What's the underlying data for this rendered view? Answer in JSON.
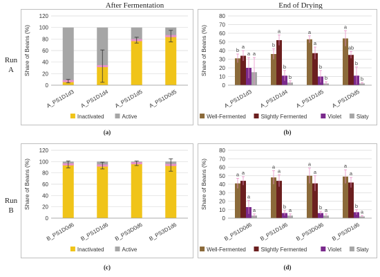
{
  "headers": {
    "left": "After Fermentation",
    "right": "End of Drying"
  },
  "runs": [
    {
      "label": "Run",
      "letter": "A"
    },
    {
      "label": "Run",
      "letter": "B"
    }
  ],
  "panel_letters": [
    "(a)",
    "(b)",
    "(c)",
    "(d)"
  ],
  "colors": {
    "inactivated": "#f0c419",
    "active": "#a6a6a6",
    "pinkband": "#e891c8",
    "well_fermented": "#8b6a3a",
    "slightly_fermented": "#6b1f1f",
    "violet": "#7a2a8c",
    "slaty": "#a6a6a6"
  },
  "chart_data": [
    {
      "id": "a",
      "type": "bar",
      "stacked": true,
      "ylabel": "Share of Beans (%)",
      "ylim": [
        0,
        120
      ],
      "yticks": [
        0,
        20,
        40,
        60,
        80,
        100,
        120
      ],
      "categories": [
        "A_PS1D1d3",
        "A_PS1D1d4",
        "A_PS1D1d5",
        "A_PS1D0d5"
      ],
      "series": [
        {
          "name": "Inactivated",
          "values": [
            7,
            33,
            78,
            85
          ],
          "errors": [
            3,
            28,
            5,
            10
          ]
        },
        {
          "name": "Active",
          "values": [
            93,
            67,
            22,
            15
          ],
          "errors": [
            3,
            28,
            5,
            13
          ]
        }
      ],
      "legend": "bottom"
    },
    {
      "id": "b",
      "type": "bar",
      "grouped": true,
      "ylabel": "Share of Beans (%)",
      "ylim": [
        0,
        80
      ],
      "yticks": [
        0,
        10,
        20,
        30,
        40,
        50,
        60,
        70,
        80
      ],
      "categories": [
        "A_PS1D1d3",
        "A_PS1D1d4",
        "A_PS1D1d5",
        "A_PS1D0d5"
      ],
      "series": [
        {
          "name": "Well-Fermented",
          "values": [
            31,
            36,
            53,
            54
          ],
          "errors": [
            5,
            6,
            4,
            9
          ]
        },
        {
          "name": "Slightly Fermented",
          "values": [
            34,
            52,
            37,
            35
          ],
          "errors": [
            6,
            6,
            7,
            4
          ]
        },
        {
          "name": "Violet",
          "values": [
            20,
            11,
            10,
            11
          ],
          "errors": [
            12,
            6,
            7,
            10
          ]
        },
        {
          "name": "Slaty",
          "values": [
            15,
            3,
            2,
            2
          ],
          "errors": [
            17,
            2,
            2,
            1
          ]
        }
      ],
      "letters": [
        [
          "b",
          "a",
          "a",
          "a"
        ],
        [
          "b",
          "a",
          "b",
          "b"
        ],
        [
          "a",
          "a",
          "b",
          "b"
        ],
        [
          "a",
          "ab",
          "b",
          "b"
        ]
      ],
      "legend": "bottom"
    },
    {
      "id": "c",
      "type": "bar",
      "stacked": true,
      "ylabel": "Share of Beans (%)",
      "ylim": [
        0,
        120
      ],
      "yticks": [
        0,
        20,
        40,
        60,
        80,
        100,
        120
      ],
      "categories": [
        "B_PS1D0d6",
        "B_PS1D1d6",
        "B_PS3D0d6",
        "B_PS3D1d6"
      ],
      "series": [
        {
          "name": "Inactivated",
          "values": [
            95,
            93,
            97,
            94
          ],
          "errors": [
            6,
            6,
            4,
            11
          ]
        },
        {
          "name": "Active",
          "values": [
            5,
            7,
            3,
            6
          ],
          "errors": [
            5,
            6,
            3,
            7
          ]
        }
      ],
      "legend": "bottom"
    },
    {
      "id": "d",
      "type": "bar",
      "grouped": true,
      "ylabel": "Share of Beans (%)",
      "ylim": [
        0,
        80
      ],
      "yticks": [
        0,
        10,
        20,
        30,
        40,
        50,
        60,
        70,
        80
      ],
      "categories": [
        "B_PS1D0d6",
        "B_PS1D1d6",
        "B_PS3D0d6",
        "B_PS3D1d6"
      ],
      "series": [
        {
          "name": "Well-Fermented",
          "values": [
            41,
            48,
            50,
            49
          ],
          "errors": [
            6,
            8,
            9,
            8
          ]
        },
        {
          "name": "Slightly Fermented",
          "values": [
            44,
            44,
            41,
            42
          ],
          "errors": [
            5,
            7,
            9,
            6
          ]
        },
        {
          "name": "Violet",
          "values": [
            13,
            6,
            6,
            7
          ],
          "errors": [
            8,
            3,
            2,
            3
          ]
        },
        {
          "name": "Slaty",
          "values": [
            3,
            3,
            3,
            2
          ],
          "errors": [
            2,
            2,
            2,
            1
          ]
        }
      ],
      "letters": [
        [
          "a",
          "a",
          "a",
          "a"
        ],
        [
          "a",
          "a",
          "b",
          "a"
        ],
        [
          "a",
          "a",
          "b",
          "a"
        ],
        [
          "a",
          "a",
          "b",
          "a"
        ]
      ],
      "legend": "bottom"
    }
  ]
}
